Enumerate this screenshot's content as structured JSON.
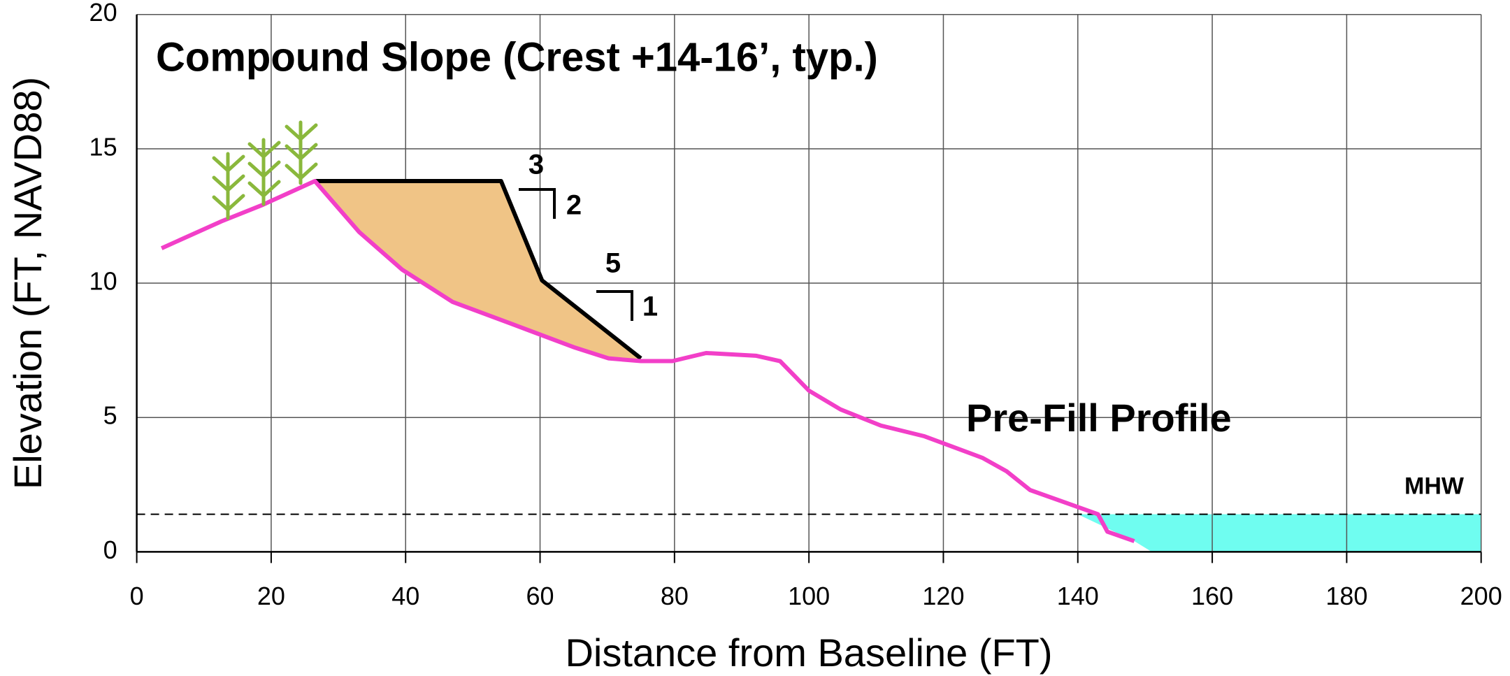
{
  "chart_data": {
    "type": "line",
    "title": "Compound Slope (Crest +14-16’, typ.)",
    "xlabel": "Distance from Baseline (FT)",
    "ylabel": "Elevation (FT, NAVD88)",
    "xlim": [
      0,
      200
    ],
    "ylim": [
      0,
      20
    ],
    "xticks": [
      0,
      20,
      40,
      60,
      80,
      100,
      120,
      140,
      160,
      180,
      200
    ],
    "yticks": [
      0,
      5,
      10,
      15,
      20
    ],
    "grid": true,
    "series": [
      {
        "name": "Pre-Fill Profile",
        "color": "#f23fc8",
        "x": [
          3.7,
          12.6,
          18.6,
          26.5,
          33.1,
          39.5,
          47,
          55.6,
          65.2,
          70.2,
          75,
          79.7,
          84.7,
          92.1,
          95.7,
          100,
          104.7,
          110.7,
          117.2,
          125.8,
          129.4,
          132.9,
          143,
          144.4,
          148.4
        ],
        "y": [
          11.3,
          12.3,
          12.9,
          13.8,
          11.9,
          10.5,
          9.3,
          8.5,
          7.6,
          7.2,
          7.1,
          7.1,
          7.4,
          7.3,
          7.1,
          6.0,
          5.3,
          4.7,
          4.3,
          3.5,
          3.0,
          2.3,
          1.4,
          0.75,
          0.4
        ]
      },
      {
        "color": "#000000",
        "fill": "#f0c486",
        "x": [
          26.5,
          54.2,
          60.3,
          75
        ],
        "y": [
          13.8,
          13.8,
          10.1,
          7.2
        ]
      }
    ],
    "mhw": {
      "label": "MHW",
      "value": 1.4
    },
    "water": {
      "color": "#6ffdf0",
      "x": [
        140,
        200,
        200,
        151,
        148.4
      ],
      "y": [
        1.4,
        1.4,
        0,
        0,
        0.4
      ]
    },
    "slopes": [
      "3",
      "2",
      "5",
      "1"
    ]
  }
}
